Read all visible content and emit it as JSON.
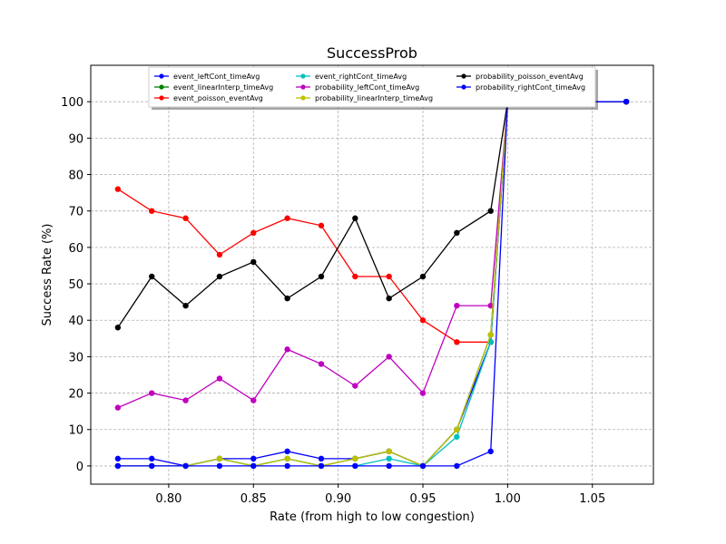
{
  "chart_data": {
    "type": "line",
    "title": "SuccessProb",
    "xlabel": "Rate (from high to low congestion)",
    "ylabel": "Success Rate (%)",
    "xlim": [
      0.754,
      1.086
    ],
    "ylim": [
      -5,
      110
    ],
    "xticks": [
      0.8,
      0.85,
      0.9,
      0.95,
      1.0,
      1.05
    ],
    "xtick_labels": [
      "0.80",
      "0.85",
      "0.90",
      "0.95",
      "1.00",
      "1.05"
    ],
    "yticks": [
      0,
      10,
      20,
      30,
      40,
      50,
      60,
      70,
      80,
      90,
      100
    ],
    "ytick_labels": [
      "0",
      "10",
      "20",
      "30",
      "40",
      "50",
      "60",
      "70",
      "80",
      "90",
      "100"
    ],
    "grid": true,
    "legend_position": "top-center",
    "x": [
      0.77,
      0.79,
      0.81,
      0.83,
      0.85,
      0.87,
      0.89,
      0.91,
      0.93,
      0.95,
      0.97,
      0.99,
      1.0,
      1.07
    ],
    "series": [
      {
        "name": "event_leftCont_timeAvg",
        "color": "#0000ff",
        "values": [
          2,
          2,
          0,
          2,
          2,
          4,
          2,
          2,
          4,
          0,
          10,
          34,
          100,
          100
        ]
      },
      {
        "name": "event_linearInterp_timeAvg",
        "color": "#008000",
        "values": [
          0,
          0,
          0,
          2,
          0,
          2,
          0,
          2,
          4,
          0,
          10,
          36,
          100,
          100
        ]
      },
      {
        "name": "event_poisson_eventAvg",
        "color": "#ff0000",
        "values": [
          76,
          70,
          68,
          58,
          64,
          68,
          66,
          52,
          52,
          40,
          34,
          34,
          100,
          100
        ]
      },
      {
        "name": "event_rightCont_timeAvg",
        "color": "#00bfbf",
        "values": [
          0,
          0,
          0,
          2,
          0,
          2,
          0,
          0,
          2,
          0,
          8,
          34,
          100,
          100
        ]
      },
      {
        "name": "probability_leftCont_timeAvg",
        "color": "#bf00bf",
        "values": [
          16,
          20,
          18,
          24,
          18,
          32,
          28,
          22,
          30,
          20,
          44,
          44,
          100,
          100
        ]
      },
      {
        "name": "probability_linearInterp_timeAvg",
        "color": "#bfbf00",
        "values": [
          0,
          0,
          0,
          2,
          0,
          2,
          0,
          2,
          4,
          0,
          10,
          36,
          100,
          100
        ]
      },
      {
        "name": "probability_poisson_eventAvg",
        "color": "#000000",
        "values": [
          38,
          52,
          44,
          52,
          56,
          46,
          52,
          68,
          46,
          52,
          64,
          70,
          100,
          100
        ]
      },
      {
        "name": "probability_rightCont_timeAvg",
        "color": "#0000ff",
        "values": [
          0,
          0,
          0,
          0,
          0,
          0,
          0,
          0,
          0,
          0,
          0,
          4,
          100,
          100
        ]
      }
    ]
  }
}
